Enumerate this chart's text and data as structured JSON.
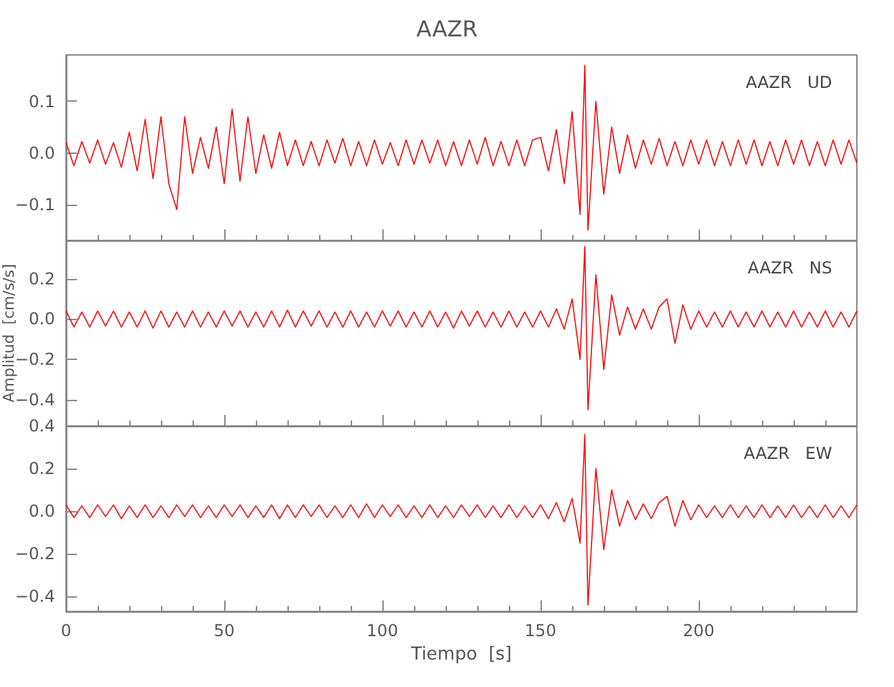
{
  "chart_data": [
    {
      "type": "line",
      "title": "AAZR",
      "color": "#ff0000",
      "marker": "none",
      "grid": false,
      "tick_labels": "y",
      "annotations": [
        "AAZR   UD"
      ],
      "x": [
        0,
        2.5,
        5,
        7.5,
        10,
        12.5,
        15,
        17.5,
        20,
        22.5,
        25,
        27.5,
        30,
        32.5,
        35,
        37.5,
        40,
        42.5,
        45,
        47.5,
        50,
        52.5,
        55,
        57.5,
        60,
        62.5,
        65,
        67.5,
        70,
        72.5,
        75,
        77.5,
        80,
        82.5,
        85,
        87.5,
        90,
        92.5,
        95,
        97.5,
        100,
        102.5,
        105,
        107.5,
        110,
        112.5,
        115,
        117.5,
        120,
        122.5,
        125,
        127.5,
        130,
        132.5,
        135,
        137.5,
        140,
        142.5,
        145,
        147.5,
        150,
        152.5,
        155,
        157.5,
        160,
        162.5,
        164,
        165,
        167.5,
        170,
        172.5,
        175,
        177.5,
        180,
        182.5,
        185,
        187.5,
        190,
        192.5,
        195,
        197.5,
        200,
        202.5,
        205,
        207.5,
        210,
        212.5,
        215,
        217.5,
        220,
        222.5,
        225,
        227.5,
        230,
        232.5,
        235,
        237.5,
        240,
        242.5,
        245,
        247.5,
        250
      ],
      "values": [
        0.02,
        -0.025,
        0.022,
        -0.02,
        0.025,
        -0.022,
        0.02,
        -0.028,
        0.04,
        -0.035,
        0.065,
        -0.05,
        0.07,
        -0.06,
        -0.11,
        0.07,
        -0.04,
        0.03,
        -0.03,
        0.05,
        -0.06,
        0.085,
        -0.055,
        0.07,
        -0.04,
        0.035,
        -0.03,
        0.04,
        -0.025,
        0.025,
        -0.025,
        0.022,
        -0.025,
        0.025,
        -0.02,
        0.028,
        -0.025,
        0.022,
        -0.025,
        0.025,
        -0.022,
        0.02,
        -0.025,
        0.025,
        -0.022,
        0.025,
        -0.02,
        0.025,
        -0.025,
        0.022,
        -0.025,
        0.025,
        -0.022,
        0.03,
        -0.025,
        0.022,
        -0.025,
        0.025,
        -0.025,
        0.025,
        0.03,
        -0.035,
        0.045,
        -0.06,
        0.08,
        -0.12,
        0.17,
        -0.15,
        0.1,
        -0.08,
        0.05,
        -0.04,
        0.035,
        -0.03,
        0.025,
        -0.022,
        0.028,
        -0.025,
        0.022,
        -0.025,
        0.025,
        -0.022,
        0.025,
        -0.025,
        0.022,
        -0.025,
        0.025,
        -0.022,
        0.025,
        -0.025,
        0.022,
        -0.025,
        0.025,
        -0.022,
        0.025,
        -0.025,
        0.022,
        -0.025,
        0.025,
        -0.022,
        0.025,
        -0.02
      ],
      "xlim": [
        0,
        250
      ],
      "xticks": [
        0,
        50,
        100,
        150,
        200
      ],
      "ylim": [
        -0.17,
        0.19
      ],
      "yticks": [
        {
          "value": -0.1,
          "label": "−0.1"
        },
        {
          "value": 0,
          "label": "0.0"
        },
        {
          "value": 0.1,
          "label": "0.1"
        }
      ]
    },
    {
      "type": "line",
      "ylabel": "Amplitud  [cm/s/s]",
      "color": "#ff0000",
      "marker": "none",
      "grid": false,
      "tick_labels": "y",
      "annotations": [
        "AAZR   NS"
      ],
      "x": [
        0,
        2.5,
        5,
        7.5,
        10,
        12.5,
        15,
        17.5,
        20,
        22.5,
        25,
        27.5,
        30,
        32.5,
        35,
        37.5,
        40,
        42.5,
        45,
        47.5,
        50,
        52.5,
        55,
        57.5,
        60,
        62.5,
        65,
        67.5,
        70,
        72.5,
        75,
        77.5,
        80,
        82.5,
        85,
        87.5,
        90,
        92.5,
        95,
        97.5,
        100,
        102.5,
        105,
        107.5,
        110,
        112.5,
        115,
        117.5,
        120,
        122.5,
        125,
        127.5,
        130,
        132.5,
        135,
        137.5,
        140,
        142.5,
        145,
        147.5,
        150,
        152.5,
        155,
        157.5,
        160,
        162.5,
        164,
        165,
        167.5,
        170,
        172.5,
        175,
        177.5,
        180,
        182.5,
        185,
        187.5,
        190,
        192.5,
        195,
        197.5,
        200,
        202.5,
        205,
        207.5,
        210,
        212.5,
        215,
        217.5,
        220,
        222.5,
        225,
        227.5,
        230,
        232.5,
        235,
        237.5,
        240,
        242.5,
        245,
        247.5,
        250
      ],
      "values": [
        0.04,
        -0.04,
        0.035,
        -0.04,
        0.04,
        -0.035,
        0.04,
        -0.04,
        0.035,
        -0.04,
        0.04,
        -0.045,
        0.04,
        -0.04,
        0.035,
        -0.04,
        0.04,
        -0.04,
        0.035,
        -0.04,
        0.04,
        -0.035,
        0.04,
        -0.04,
        0.035,
        -0.04,
        0.04,
        -0.04,
        0.045,
        -0.04,
        0.04,
        -0.035,
        0.04,
        -0.04,
        0.035,
        -0.04,
        0.04,
        -0.04,
        0.035,
        -0.04,
        0.04,
        -0.035,
        0.04,
        -0.04,
        0.035,
        -0.04,
        0.04,
        -0.04,
        0.035,
        -0.045,
        0.04,
        -0.035,
        0.04,
        -0.04,
        0.035,
        -0.04,
        0.04,
        -0.04,
        0.035,
        -0.04,
        0.04,
        -0.04,
        0.05,
        -0.05,
        0.1,
        -0.2,
        0.36,
        -0.45,
        0.22,
        -0.25,
        0.12,
        -0.08,
        0.06,
        -0.05,
        0.05,
        -0.05,
        0.06,
        0.1,
        -0.12,
        0.07,
        -0.05,
        0.04,
        -0.04,
        0.035,
        -0.04,
        0.04,
        -0.04,
        0.035,
        -0.04,
        0.04,
        -0.04,
        0.035,
        -0.04,
        0.04,
        -0.04,
        0.035,
        -0.04,
        0.04,
        -0.04,
        0.035,
        -0.04,
        0.04
      ],
      "xlim": [
        0,
        250
      ],
      "xticks": [
        0,
        50,
        100,
        150,
        200
      ],
      "ylim": [
        -0.53,
        0.39
      ],
      "yticks": [
        {
          "value": -0.4,
          "label": "−0.4"
        },
        {
          "value": -0.2,
          "label": "−0.2"
        },
        {
          "value": 0,
          "label": "0.0"
        },
        {
          "value": 0.2,
          "label": "0.2"
        }
      ]
    },
    {
      "type": "line",
      "xlabel": "Tiempo  [s]",
      "color": "#ff0000",
      "marker": "none",
      "grid": false,
      "annotations": [
        "AAZR   EW"
      ],
      "x": [
        0,
        2.5,
        5,
        7.5,
        10,
        12.5,
        15,
        17.5,
        20,
        22.5,
        25,
        27.5,
        30,
        32.5,
        35,
        37.5,
        40,
        42.5,
        45,
        47.5,
        50,
        52.5,
        55,
        57.5,
        60,
        62.5,
        65,
        67.5,
        70,
        72.5,
        75,
        77.5,
        80,
        82.5,
        85,
        87.5,
        90,
        92.5,
        95,
        97.5,
        100,
        102.5,
        105,
        107.5,
        110,
        112.5,
        115,
        117.5,
        120,
        122.5,
        125,
        127.5,
        130,
        132.5,
        135,
        137.5,
        140,
        142.5,
        145,
        147.5,
        150,
        152.5,
        155,
        157.5,
        160,
        162.5,
        164,
        165,
        167.5,
        170,
        172.5,
        175,
        177.5,
        180,
        182.5,
        185,
        187.5,
        190,
        192.5,
        195,
        197.5,
        200,
        202.5,
        205,
        207.5,
        210,
        212.5,
        215,
        217.5,
        220,
        222.5,
        225,
        227.5,
        230,
        232.5,
        235,
        237.5,
        240,
        242.5,
        245,
        247.5,
        250
      ],
      "values": [
        0.03,
        -0.03,
        0.025,
        -0.03,
        0.03,
        -0.025,
        0.03,
        -0.035,
        0.025,
        -0.03,
        0.03,
        -0.03,
        0.025,
        -0.03,
        0.03,
        -0.025,
        0.03,
        -0.03,
        0.025,
        -0.03,
        0.03,
        -0.025,
        0.03,
        -0.03,
        0.025,
        -0.03,
        0.03,
        -0.035,
        0.03,
        -0.03,
        0.03,
        -0.025,
        0.03,
        -0.03,
        0.025,
        -0.03,
        0.03,
        -0.03,
        0.035,
        -0.03,
        0.03,
        -0.025,
        0.03,
        -0.03,
        0.025,
        -0.03,
        0.03,
        -0.03,
        0.025,
        -0.03,
        0.03,
        -0.025,
        0.03,
        -0.03,
        0.025,
        -0.03,
        0.03,
        -0.03,
        0.025,
        -0.03,
        0.03,
        -0.035,
        0.04,
        -0.05,
        0.06,
        -0.15,
        0.36,
        -0.44,
        0.2,
        -0.18,
        0.1,
        -0.07,
        0.05,
        -0.04,
        0.035,
        -0.035,
        0.04,
        0.07,
        -0.07,
        0.05,
        -0.04,
        0.03,
        -0.03,
        0.025,
        -0.03,
        0.03,
        -0.03,
        0.025,
        -0.03,
        0.03,
        -0.03,
        0.025,
        -0.03,
        0.03,
        -0.03,
        0.025,
        -0.03,
        0.03,
        -0.03,
        0.025,
        -0.03,
        0.03
      ],
      "xlim": [
        0,
        250
      ],
      "xticks": [
        0,
        50,
        100,
        150,
        200
      ],
      "ylim": [
        -0.47,
        0.4
      ],
      "yticks": [
        {
          "value": -0.4,
          "label": "−0.4"
        },
        {
          "value": -0.2,
          "label": "−0.2"
        },
        {
          "value": 0,
          "label": "0.0"
        },
        {
          "value": 0.2,
          "label": "0.2"
        },
        {
          "value": 0.4,
          "label": "0.4"
        }
      ]
    }
  ]
}
